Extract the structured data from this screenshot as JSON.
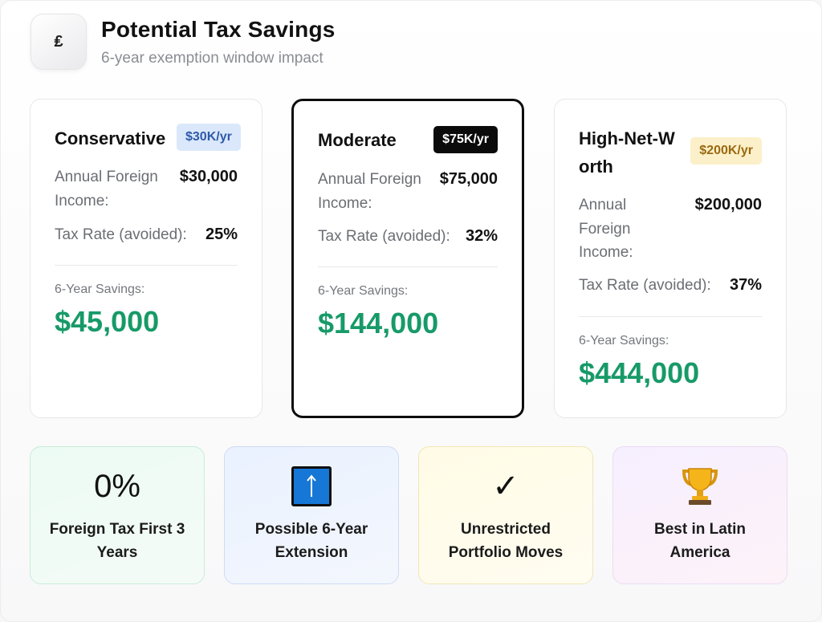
{
  "header": {
    "title": "Potential Tax Savings",
    "subtitle": "6-year exemption window impact",
    "icon_glyph": "₤",
    "icon_name": "currency-icon"
  },
  "cards": [
    {
      "name": "Conservative",
      "badge": "$30K/yr",
      "badge_color": "#dbe8fb",
      "income_label": "Annual Foreign Income:",
      "income_value": "$30,000",
      "rate_label": "Tax Rate (avoided):",
      "rate_value": "25%",
      "savings_label": "6-Year Savings:",
      "savings_value": "$45,000"
    },
    {
      "name": "Moderate",
      "badge": "$75K/yr",
      "badge_color": "#0b0b0b",
      "income_label": "Annual Foreign Income:",
      "income_value": "$75,000",
      "rate_label": "Tax Rate (avoided):",
      "rate_value": "32%",
      "savings_label": "6-Year Savings:",
      "savings_value": "$144,000",
      "selected": true
    },
    {
      "name": "High-Net-Worth",
      "badge": "$200K/yr",
      "badge_color": "#fbf0c9",
      "income_label": "Annual Foreign Income:",
      "income_value": "$200,000",
      "rate_label": "Tax Rate (avoided):",
      "rate_value": "37%",
      "savings_label": "6-Year Savings:",
      "savings_value": "$444,000"
    }
  ],
  "features": [
    {
      "icon_text": "0%",
      "icon_name": "percent-icon",
      "text": "Foreign Tax First 3 Years"
    },
    {
      "icon_name": "up-arrow-icon",
      "text": "Possible 6-Year Extension"
    },
    {
      "icon_text": "✓",
      "icon_name": "checkmark-icon",
      "text": "Unrestricted Portfolio Moves"
    },
    {
      "icon_name": "trophy-icon",
      "text": "Best in Latin America"
    }
  ],
  "colors": {
    "savings_green": "#179a68",
    "selected_border": "#0d0d0d"
  }
}
